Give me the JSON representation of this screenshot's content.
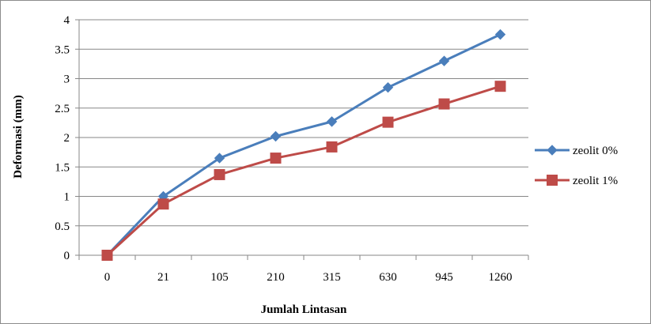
{
  "chart_data": {
    "type": "line",
    "xlabel": "Jumlah Lintasan",
    "ylabel": "Deformasi (mm)",
    "categories": [
      "0",
      "21",
      "105",
      "210",
      "315",
      "630",
      "945",
      "1260"
    ],
    "ylim": [
      0,
      4
    ],
    "yticks": [
      "0",
      "0.5",
      "1",
      "1.5",
      "2",
      "2.5",
      "3",
      "3.5",
      "4"
    ],
    "grid": true,
    "legend_position": "right",
    "series": [
      {
        "name": "zeolit 0%",
        "color": "#4a7ebb",
        "marker": "diamond",
        "values": [
          0,
          1.0,
          1.65,
          2.02,
          2.27,
          2.85,
          3.3,
          3.75
        ]
      },
      {
        "name": "zeolit 1%",
        "color": "#be4b48",
        "marker": "square",
        "values": [
          0,
          0.87,
          1.37,
          1.65,
          1.84,
          2.26,
          2.57,
          2.87
        ]
      }
    ]
  }
}
